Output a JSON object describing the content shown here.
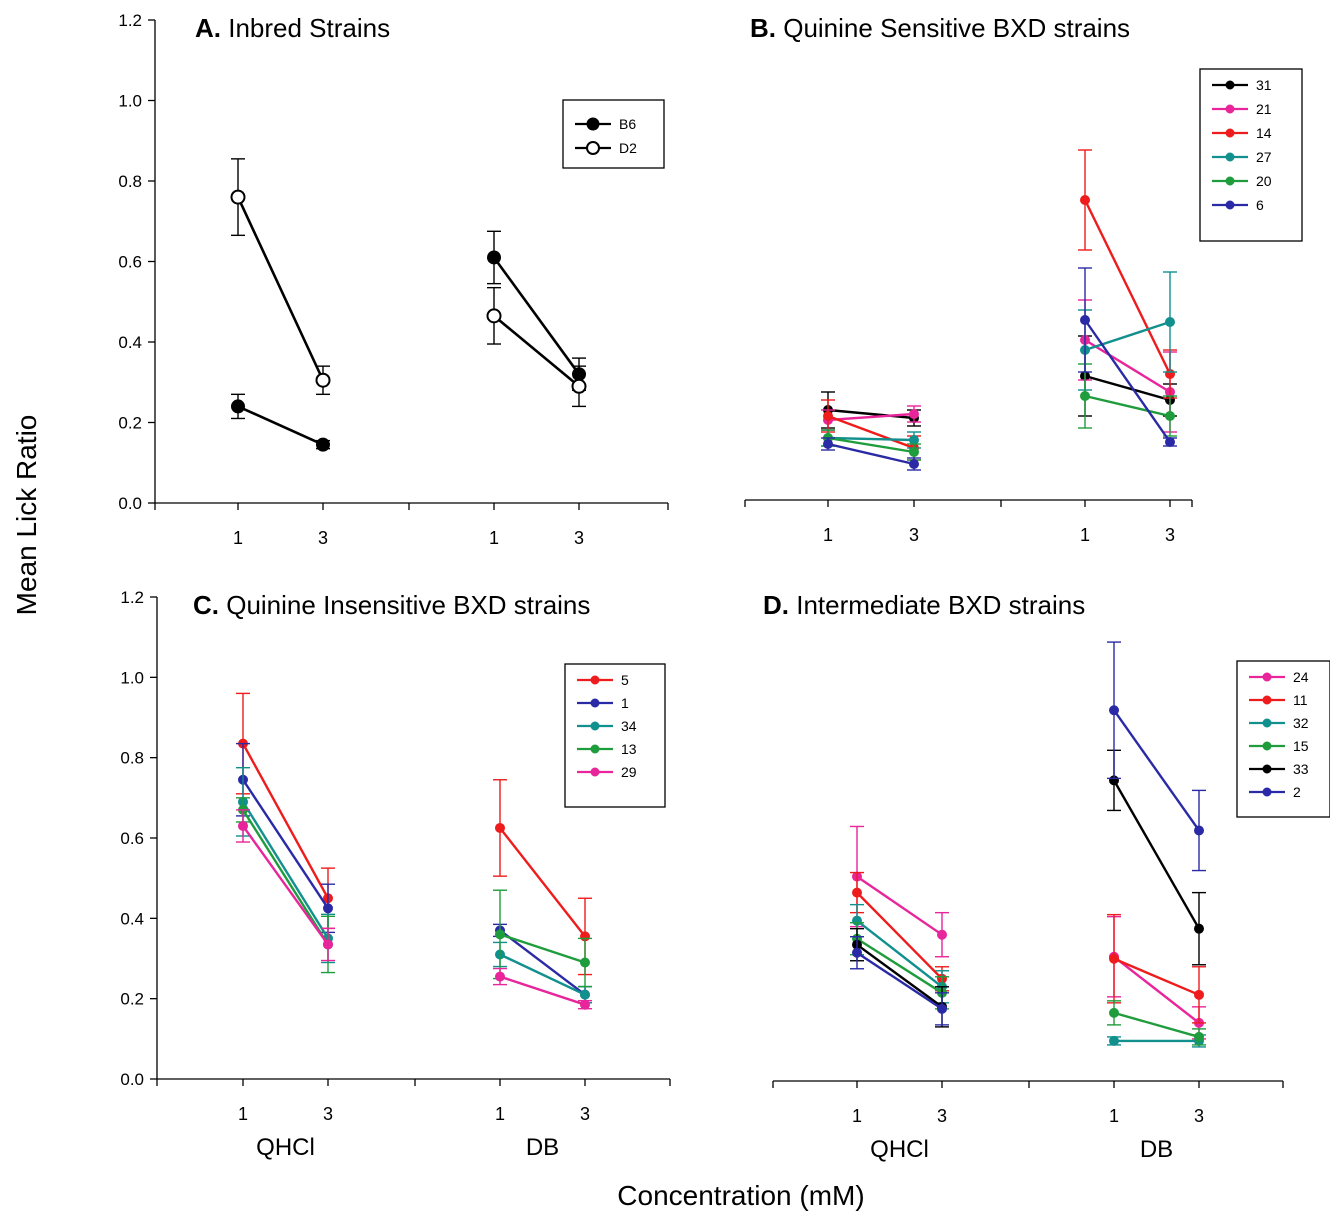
{
  "figure": {
    "ylabel": "Mean Lick Ratio",
    "xlabel": "Concentration (mM)"
  },
  "chart_data": [
    {
      "type": "line",
      "letter": "A.",
      "title": "Inbred Strains",
      "ylim": [
        0,
        1.2
      ],
      "yticks": [
        "0.0",
        "0.2",
        "0.4",
        "0.6",
        "0.8",
        "1.0",
        "1.2"
      ],
      "tick_labels": [
        "1",
        "3",
        "1",
        "3"
      ],
      "groups": [],
      "series": [
        {
          "name": "B6",
          "color": "#000000",
          "marker": "filled",
          "qhcl": [
            0.24,
            0.145
          ],
          "qhcl_err": [
            0.03,
            0.01
          ],
          "db": [
            0.61,
            0.32
          ],
          "db_err": [
            0.065,
            0.04
          ]
        },
        {
          "name": "D2",
          "color": "#000000",
          "marker": "open",
          "qhcl": [
            0.76,
            0.305
          ],
          "qhcl_err": [
            0.095,
            0.035
          ],
          "db": [
            0.465,
            0.29
          ],
          "db_err": [
            0.07,
            0.05
          ]
        }
      ]
    },
    {
      "type": "line",
      "letter": "B.",
      "title": "Quinine Sensitive BXD strains",
      "ylim": [
        0,
        1.2
      ],
      "yticks": [],
      "tick_labels": [
        "1",
        "3",
        "1",
        "3"
      ],
      "groups": [],
      "series": [
        {
          "name": "31",
          "color": "#000000",
          "qhcl": [
            0.225,
            0.205
          ],
          "qhcl_err": [
            0.045,
            0.02
          ],
          "db": [
            0.31,
            0.25
          ],
          "db_err": [
            0.1,
            0.04
          ]
        },
        {
          "name": "21",
          "color": "#e8259a",
          "qhcl": [
            0.2,
            0.215
          ],
          "qhcl_err": [
            0.025,
            0.02
          ],
          "db": [
            0.4,
            0.27
          ],
          "db_err": [
            0.1,
            0.1
          ]
        },
        {
          "name": "14",
          "color": "#ee1c1c",
          "qhcl": [
            0.21,
            0.13
          ],
          "qhcl_err": [
            0.04,
            0.03
          ],
          "db": [
            0.75,
            0.315
          ],
          "db_err": [
            0.125,
            0.06
          ]
        },
        {
          "name": "27",
          "color": "#11908e",
          "qhcl": [
            0.155,
            0.15
          ],
          "qhcl_err": [
            0.02,
            0.02
          ],
          "db": [
            0.375,
            0.445
          ],
          "db_err": [
            0.1,
            0.125
          ]
        },
        {
          "name": "20",
          "color": "#1f9c3c",
          "qhcl": [
            0.155,
            0.12
          ],
          "qhcl_err": [
            0.02,
            0.02
          ],
          "db": [
            0.26,
            0.21
          ],
          "db_err": [
            0.08,
            0.05
          ]
        },
        {
          "name": "6",
          "color": "#2a2aa6",
          "qhcl": [
            0.14,
            0.09
          ],
          "qhcl_err": [
            0.015,
            0.015
          ],
          "db": [
            0.45,
            0.145
          ],
          "db_err": [
            0.13,
            0.01
          ]
        }
      ]
    },
    {
      "type": "line",
      "letter": "C.",
      "title": "Quinine Insensitive BXD strains",
      "ylim": [
        0,
        1.2
      ],
      "yticks": [
        "0.0",
        "0.2",
        "0.4",
        "0.6",
        "0.8",
        "1.0",
        "1.2"
      ],
      "tick_labels": [
        "1",
        "3",
        "1",
        "3"
      ],
      "groups": [
        "QHCl",
        "DB"
      ],
      "series": [
        {
          "name": "5",
          "color": "#ee1c1c",
          "qhcl": [
            0.835,
            0.45
          ],
          "qhcl_err": [
            0.125,
            0.075
          ],
          "db": [
            0.625,
            0.355
          ],
          "db_err": [
            0.12,
            0.095
          ]
        },
        {
          "name": "1",
          "color": "#2a2aa6",
          "qhcl": [
            0.745,
            0.425
          ],
          "qhcl_err": [
            0.09,
            0.06
          ],
          "db": [
            0.37,
            0.21
          ],
          "db_err": [
            0.015,
            0.02
          ]
        },
        {
          "name": "34",
          "color": "#11908e",
          "qhcl": [
            0.69,
            0.35
          ],
          "qhcl_err": [
            0.085,
            0.06
          ],
          "db": [
            0.31,
            0.21
          ],
          "db_err": [
            0.03,
            0.02
          ]
        },
        {
          "name": "13",
          "color": "#1f9c3c",
          "qhcl": [
            0.67,
            0.335
          ],
          "qhcl_err": [
            0.03,
            0.07
          ],
          "db": [
            0.36,
            0.29
          ],
          "db_err": [
            0.11,
            0.06
          ]
        },
        {
          "name": "29",
          "color": "#e8259a",
          "qhcl": [
            0.63,
            0.335
          ],
          "qhcl_err": [
            0.04,
            0.04
          ],
          "db": [
            0.255,
            0.185
          ],
          "db_err": [
            0.02,
            0.01
          ]
        }
      ]
    },
    {
      "type": "line",
      "letter": "D.",
      "title": "Intermediate BXD strains",
      "ylim": [
        0,
        1.2
      ],
      "yticks": [],
      "tick_labels": [
        "1",
        "3",
        "1",
        "3"
      ],
      "groups": [
        "QHCl",
        "DB"
      ],
      "series": [
        {
          "name": "24",
          "color": "#e8259a",
          "qhcl": [
            0.51,
            0.365
          ],
          "qhcl_err": [
            0.125,
            0.055
          ],
          "db": [
            0.31,
            0.145
          ],
          "db_err": [
            0.1,
            0.04
          ]
        },
        {
          "name": "11",
          "color": "#ee1c1c",
          "qhcl": [
            0.47,
            0.255
          ],
          "qhcl_err": [
            0.05,
            0.03
          ],
          "db": [
            0.305,
            0.215
          ],
          "db_err": [
            0.11,
            0.07
          ]
        },
        {
          "name": "32",
          "color": "#11908e",
          "qhcl": [
            0.4,
            0.235
          ],
          "qhcl_err": [
            0.04,
            0.04
          ],
          "db": [
            0.1,
            0.1
          ],
          "db_err": [
            0.01,
            0.015
          ]
        },
        {
          "name": "15",
          "color": "#1f9c3c",
          "qhcl": [
            0.355,
            0.22
          ],
          "qhcl_err": [
            0.04,
            0.04
          ],
          "db": [
            0.17,
            0.11
          ],
          "db_err": [
            0.03,
            0.02
          ]
        },
        {
          "name": "33",
          "color": "#000000",
          "qhcl": [
            0.34,
            0.185
          ],
          "qhcl_err": [
            0.04,
            0.05
          ],
          "db": [
            0.75,
            0.38
          ],
          "db_err": [
            0.075,
            0.09
          ]
        },
        {
          "name": "2",
          "color": "#2a2aa6",
          "qhcl": [
            0.32,
            0.18
          ],
          "qhcl_err": [
            0.04,
            0.04
          ],
          "db": [
            0.925,
            0.625
          ],
          "db_err": [
            0.17,
            0.1
          ]
        }
      ]
    }
  ]
}
